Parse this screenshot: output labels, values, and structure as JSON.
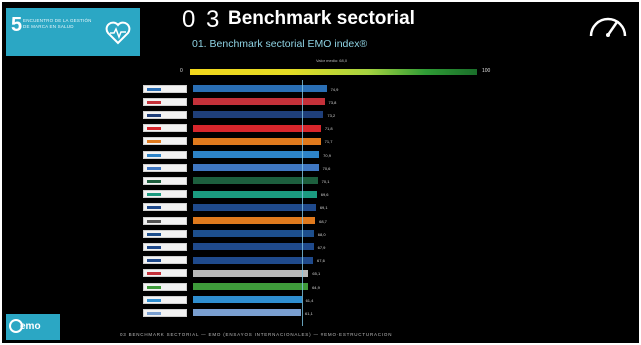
{
  "badge": {
    "number": "5",
    "text": "Encuentro de la gestión de marca en salud"
  },
  "header": {
    "title_number": "0 3",
    "title": "Benchmark sectorial",
    "subtitle": "01. Benchmark sectorial EMO index®"
  },
  "scale": {
    "label": "Valor medio: 68,0",
    "min_label": "0",
    "max_label": "100"
  },
  "footer": {
    "text": "03 BENCHMARK SECTORIAL — EMO (ENSAYOS INTERNACIONALES) — #EMO·ESTRUCTURACION"
  },
  "corner_logo": {
    "text": "emo"
  },
  "colors": {
    "accent": "#2ba7c4",
    "background": "#000000"
  },
  "chart_data": {
    "type": "bar",
    "orientation": "horizontal",
    "values": [
      74.9,
      73.8,
      73.2,
      71.8,
      71.7,
      70.9,
      70.6,
      70.1,
      69.6,
      69.1,
      68.7,
      68.0,
      67.9,
      67.6,
      65.1,
      64.9,
      61.4,
      61.1
    ],
    "bar_colors": [
      "#2a6fb5",
      "#c4313a",
      "#1f3f7a",
      "#d7262c",
      "#e07a1d",
      "#2d83c7",
      "#3f77c2",
      "#1d5f3e",
      "#1b9b80",
      "#1f4a8c",
      "#e07a1d",
      "#1d4f8d",
      "#1f4a8c",
      "#1f4a8c",
      "#b8b8b8",
      "#3e9b3a",
      "#2f8fd1",
      "#7a9fd0"
    ],
    "value_labels": [
      "74,9",
      "73,8",
      "73,2",
      "71,8",
      "71,7",
      "70,9",
      "70,6",
      "70,1",
      "69,6",
      "69,1",
      "68,7",
      "68,0",
      "67,9",
      "67,6",
      "65,1",
      "64,9",
      "61,4",
      "61,1"
    ],
    "logo_colors": [
      "#2a6fb5",
      "#c4313a",
      "#1f3f7a",
      "#d7262c",
      "#e07a1d",
      "#2d83c7",
      "#3f77c2",
      "#1d5f3e",
      "#1b9b80",
      "#1f4a8c",
      "#555555",
      "#1d4f8d",
      "#1f4a8c",
      "#1f4a8c",
      "#c4313a",
      "#3e9b3a",
      "#2f8fd1",
      "#7a9fd0"
    ],
    "xlim": [
      0,
      100
    ],
    "reference_value": 68.0,
    "grid": false
  }
}
